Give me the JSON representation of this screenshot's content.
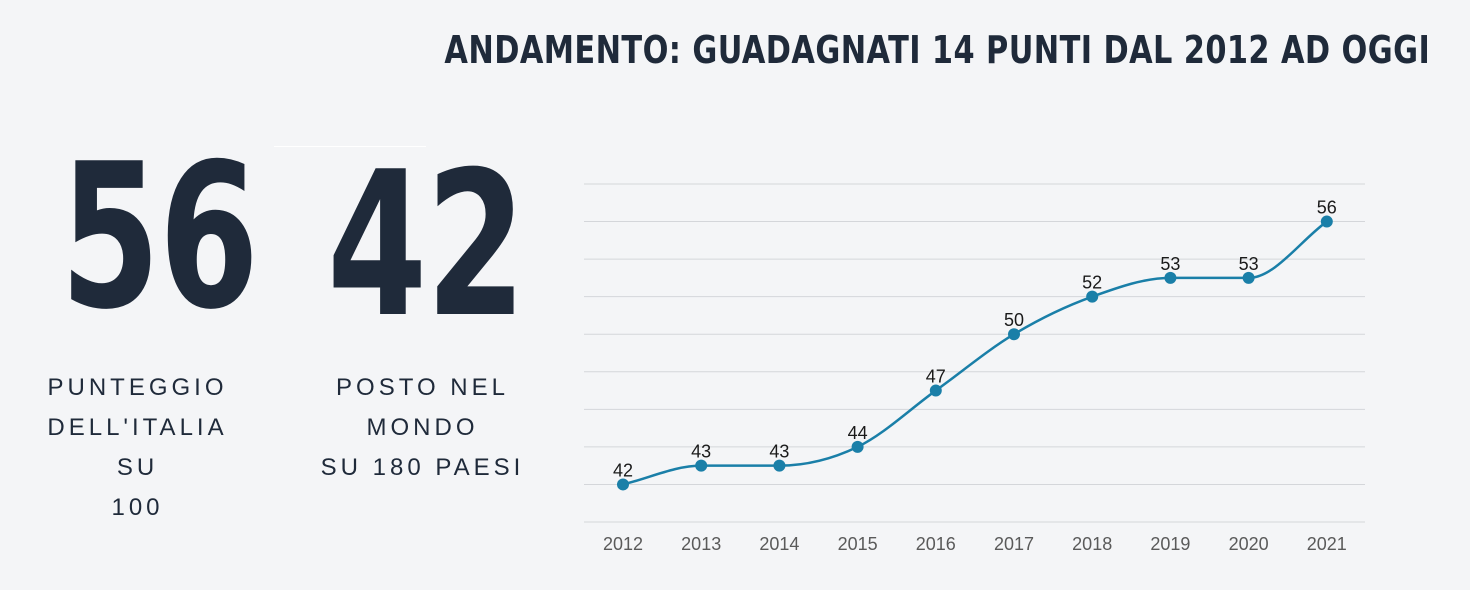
{
  "title": "ANDAMENTO: GUADAGNATI 14 PUNTI DAL 2012 AD OGGI",
  "stats": {
    "score": {
      "value": "56",
      "caption_lines": [
        "PUNTEGGIO",
        "DELL'ITALIA SU",
        "100"
      ]
    },
    "rank": {
      "value": "42",
      "caption_lines": [
        "POSTO NEL MONDO",
        "SU 180 PAESI"
      ]
    }
  },
  "colors": {
    "text": "#1f2a3a",
    "line": "#1a7fa8",
    "grid": "#d4d6da"
  },
  "chart_data": {
    "type": "line",
    "categories": [
      "2012",
      "2013",
      "2014",
      "2015",
      "2016",
      "2017",
      "2018",
      "2019",
      "2020",
      "2021"
    ],
    "values": [
      42,
      43,
      43,
      44,
      47,
      50,
      52,
      53,
      53,
      56
    ],
    "data_labels": [
      "42",
      "43",
      "43",
      "44",
      "47",
      "50",
      "52",
      "53",
      "53",
      "56"
    ],
    "ylim": [
      40,
      58
    ],
    "grid": true,
    "title": "",
    "xlabel": "",
    "ylabel": ""
  }
}
